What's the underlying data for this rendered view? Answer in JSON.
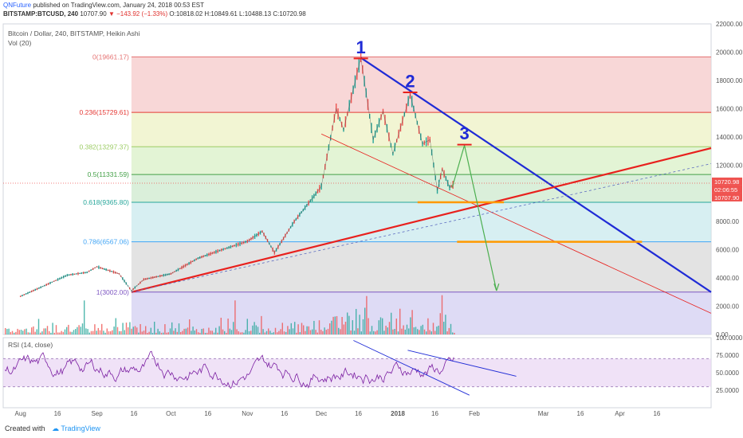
{
  "publish": {
    "author": "QNFuture",
    "text": "published on TradingView.com, January 24, 2018 00:53 EST"
  },
  "quote": {
    "symbol": "BITSTAMP:BTCUSD, 240",
    "last": "10707.90",
    "arrow": "▼",
    "change": "−143.92 (−1.33%)",
    "open": "O:10818.02",
    "high": "H:10849.61",
    "low": "L:10488.13",
    "close": "C:10720.98"
  },
  "legend": {
    "title": "Bitcoin / Dollar, 240, BITSTAMP, Heikin Ashi",
    "volume": "Vol (20)",
    "rsi": "RSI (14, close)"
  },
  "footer": {
    "created_with": "Created with",
    "brand": "TradingView"
  },
  "colors": {
    "candle_up": "#26a69a",
    "candle_down": "#ef5350",
    "trend_blue": "#1f2bd6",
    "trend_red": "#e8201d",
    "fib_support": "#ff9800",
    "projection": "#4caf50",
    "rsi_line": "#7b1fa2",
    "rsi_band": "#e9d6f3"
  },
  "chart_data": {
    "type": "line",
    "price_axis": {
      "ylim": [
        0,
        22000
      ],
      "ticks": [
        0,
        2000,
        4000,
        6000,
        8000,
        10000,
        12000,
        14000,
        16000,
        18000,
        20000,
        22000
      ],
      "tick_labels": [
        "0.00",
        "2000.00",
        "4000.00",
        "6000.00",
        "8000.00",
        "10000.00",
        "12000.00",
        "14000.00",
        "16000.00",
        "18000.00",
        "20000.00",
        "22000.00"
      ],
      "last_price_labels": [
        "10720.98",
        "02:06:55",
        "10707.90"
      ]
    },
    "time_axis": {
      "tick_labels": [
        "Aug",
        "16",
        "Sep",
        "16",
        "Oct",
        "16",
        "Nov",
        "16",
        "Dec",
        "16",
        "2018",
        "16",
        "Feb",
        "Mar",
        "16",
        "Apr",
        "16"
      ]
    },
    "fibonacci_levels": [
      {
        "label": "0(19661.17)",
        "value": 19661.17
      },
      {
        "label": "0.236(15729.61)",
        "value": 15729.61
      },
      {
        "label": "0.382(13297.37)",
        "value": 13297.37
      },
      {
        "label": "0.5(11331.59)",
        "value": 11331.59
      },
      {
        "label": "0.618(9365.80)",
        "value": 9365.8
      },
      {
        "label": "0.786(6567.06)",
        "value": 6567.06
      },
      {
        "label": "1(3002.00)",
        "value": 3002.0
      }
    ],
    "price_series": [
      {
        "date": "2017-08-01",
        "price": 2700
      },
      {
        "date": "2017-08-10",
        "price": 3400
      },
      {
        "date": "2017-08-20",
        "price": 4200
      },
      {
        "date": "2017-08-28",
        "price": 4400
      },
      {
        "date": "2017-09-01",
        "price": 4800
      },
      {
        "date": "2017-09-10",
        "price": 4300
      },
      {
        "date": "2017-09-15",
        "price": 3100
      },
      {
        "date": "2017-09-20",
        "price": 3900
      },
      {
        "date": "2017-10-01",
        "price": 4300
      },
      {
        "date": "2017-10-12",
        "price": 5400
      },
      {
        "date": "2017-10-20",
        "price": 5900
      },
      {
        "date": "2017-11-01",
        "price": 6600
      },
      {
        "date": "2017-11-07",
        "price": 7300
      },
      {
        "date": "2017-11-12",
        "price": 5800
      },
      {
        "date": "2017-11-20",
        "price": 8000
      },
      {
        "date": "2017-11-28",
        "price": 9800
      },
      {
        "date": "2017-12-01",
        "price": 10500
      },
      {
        "date": "2017-12-07",
        "price": 16000
      },
      {
        "date": "2017-12-10",
        "price": 14500
      },
      {
        "date": "2017-12-17",
        "price": 19600
      },
      {
        "date": "2017-12-22",
        "price": 13800
      },
      {
        "date": "2017-12-26",
        "price": 15800
      },
      {
        "date": "2017-12-30",
        "price": 12800
      },
      {
        "date": "2018-01-06",
        "price": 17000
      },
      {
        "date": "2018-01-11",
        "price": 13500
      },
      {
        "date": "2018-01-14",
        "price": 13800
      },
      {
        "date": "2018-01-17",
        "price": 10200
      },
      {
        "date": "2018-01-19",
        "price": 11700
      },
      {
        "date": "2018-01-22",
        "price": 10400
      },
      {
        "date": "2018-01-24",
        "price": 10700
      }
    ],
    "annotations": [
      {
        "label": "1",
        "date": "2017-12-17",
        "price": 19800
      },
      {
        "label": "2",
        "date": "2018-01-06",
        "price": 17400
      },
      {
        "label": "3",
        "date": "2018-01-28",
        "price": 13700
      }
    ],
    "rsi_axis": {
      "ylim": [
        0,
        100
      ],
      "tick_labels": [
        "25.0000",
        "50.0000",
        "75.0000",
        "100.0000"
      ],
      "band": [
        30,
        70
      ]
    }
  }
}
